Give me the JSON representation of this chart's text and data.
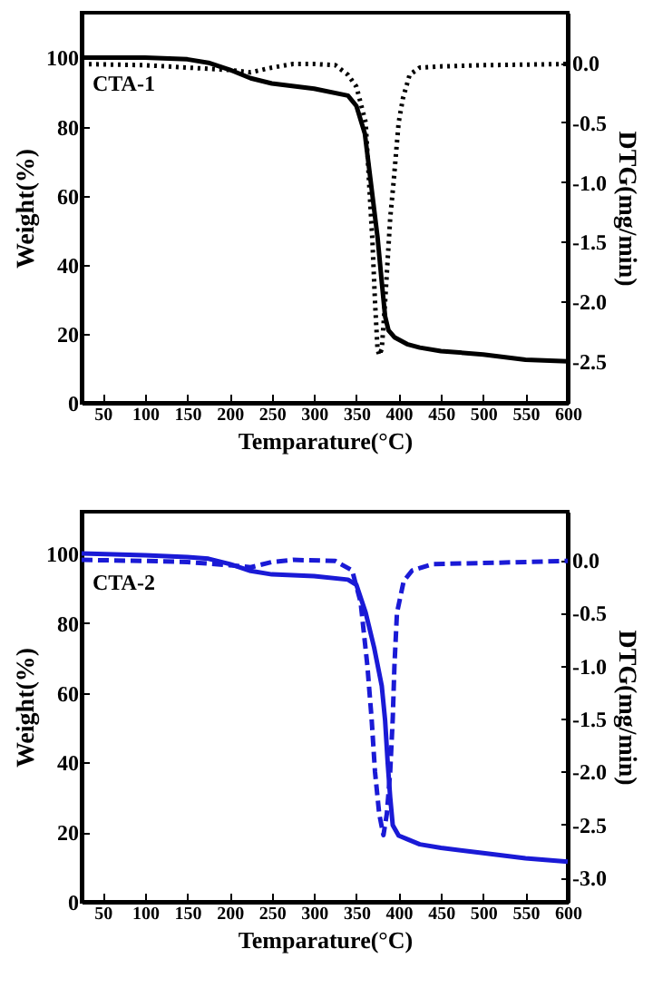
{
  "chart_data": [
    {
      "type": "line",
      "annotations": [
        "CTA-1"
      ],
      "xlabel": "Temparature(°C)",
      "ylabel": "Weight(%)",
      "y2label": "DTG(mg/min)",
      "xlim": [
        25,
        600
      ],
      "xticks": [
        50,
        100,
        150,
        200,
        250,
        300,
        350,
        400,
        450,
        500,
        550,
        600
      ],
      "ylim": [
        0,
        113
      ],
      "yticks": [
        0,
        20,
        40,
        60,
        80,
        100
      ],
      "y2lim": [
        -2.85,
        0.42
      ],
      "y2ticks": [
        {
          "value": 0,
          "label": "0.0"
        },
        {
          "value": -0.5,
          "label": "-0.5"
        },
        {
          "value": -1,
          "label": "-1.0"
        },
        {
          "value": -1.5,
          "label": "-1.5"
        },
        {
          "value": -2,
          "label": "-2.0"
        },
        {
          "value": -2.5,
          "label": "-2.5"
        }
      ],
      "grid": false,
      "series": [
        {
          "color": "#000000",
          "line_style": "solid",
          "x": [
            25,
            100,
            150,
            175,
            200,
            225,
            250,
            300,
            340,
            350,
            360,
            365,
            370,
            375,
            380,
            384,
            388,
            395,
            410,
            425,
            450,
            500,
            550,
            600
          ],
          "values": [
            100,
            100,
            99.5,
            98.5,
            96.5,
            94,
            92.5,
            91,
            89,
            86,
            78,
            68,
            58,
            48,
            35,
            25,
            21,
            19,
            17,
            16,
            15,
            14,
            12.5,
            12
          ]
        },
        {
          "color": "#000000",
          "line_style": "dotted",
          "axis": "y2",
          "x": [
            25,
            100,
            150,
            200,
            225,
            250,
            275,
            300,
            325,
            340,
            350,
            361,
            365,
            369,
            372,
            375,
            377,
            380,
            384,
            390,
            394,
            400,
            405,
            413,
            425,
            450,
            500,
            600
          ],
          "values": [
            -0.01,
            -0.02,
            -0.04,
            -0.06,
            -0.08,
            -0.04,
            -0.01,
            -0.01,
            -0.02,
            -0.1,
            -0.2,
            -0.5,
            -1,
            -1.5,
            -2,
            -2.4,
            -2.45,
            -2.4,
            -2,
            -1.3,
            -1,
            -0.5,
            -0.3,
            -0.1,
            -0.04,
            -0.03,
            -0.02,
            -0.01
          ]
        }
      ]
    },
    {
      "type": "line",
      "annotations": [
        "CTA-2"
      ],
      "xlabel": "Temparature(°C)",
      "ylabel": "Weight(%)",
      "y2label": "DTG(mg/min)",
      "xlim": [
        25,
        600
      ],
      "xticks": [
        50,
        100,
        150,
        200,
        250,
        300,
        350,
        400,
        450,
        500,
        550,
        600
      ],
      "ylim": [
        0,
        112
      ],
      "yticks": [
        0,
        20,
        40,
        60,
        80,
        100
      ],
      "y2lim": [
        -3.23,
        0.455
      ],
      "y2ticks": [
        {
          "value": 0,
          "label": "0.0"
        },
        {
          "value": -0.5,
          "label": "-0.5"
        },
        {
          "value": -1,
          "label": "-1.0"
        },
        {
          "value": -1.5,
          "label": "-1.5"
        },
        {
          "value": -2,
          "label": "-2.0"
        },
        {
          "value": -2.5,
          "label": "-2.5"
        },
        {
          "value": -3,
          "label": "-3.0"
        }
      ],
      "grid": false,
      "series": [
        {
          "color": "#1a1ad6",
          "line_style": "solid",
          "x": [
            25,
            100,
            150,
            175,
            200,
            225,
            250,
            300,
            340,
            350,
            361,
            371,
            380,
            384,
            387,
            390,
            393,
            400,
            410,
            425,
            450,
            500,
            550,
            600
          ],
          "values": [
            100,
            99.5,
            99,
            98.5,
            97,
            95,
            94,
            93.5,
            92.5,
            91,
            83,
            73,
            62,
            52,
            40,
            30,
            22,
            19,
            18,
            16.5,
            15.5,
            14,
            12.5,
            11.5
          ]
        },
        {
          "color": "#1a1ad6",
          "line_style": "dashed",
          "axis": "y2",
          "x": [
            25,
            100,
            150,
            200,
            225,
            250,
            275,
            325,
            345,
            355,
            363,
            368,
            372,
            377,
            382,
            386,
            390,
            393,
            395,
            398,
            406,
            416,
            440,
            500,
            600
          ],
          "values": [
            0,
            -0.01,
            -0.02,
            -0.05,
            -0.07,
            -0.02,
            0,
            -0.01,
            -0.1,
            -0.4,
            -1,
            -1.5,
            -2,
            -2.4,
            -2.6,
            -2.4,
            -2,
            -1.5,
            -1,
            -0.5,
            -0.2,
            -0.1,
            -0.04,
            -0.03,
            -0.01
          ]
        }
      ]
    }
  ]
}
